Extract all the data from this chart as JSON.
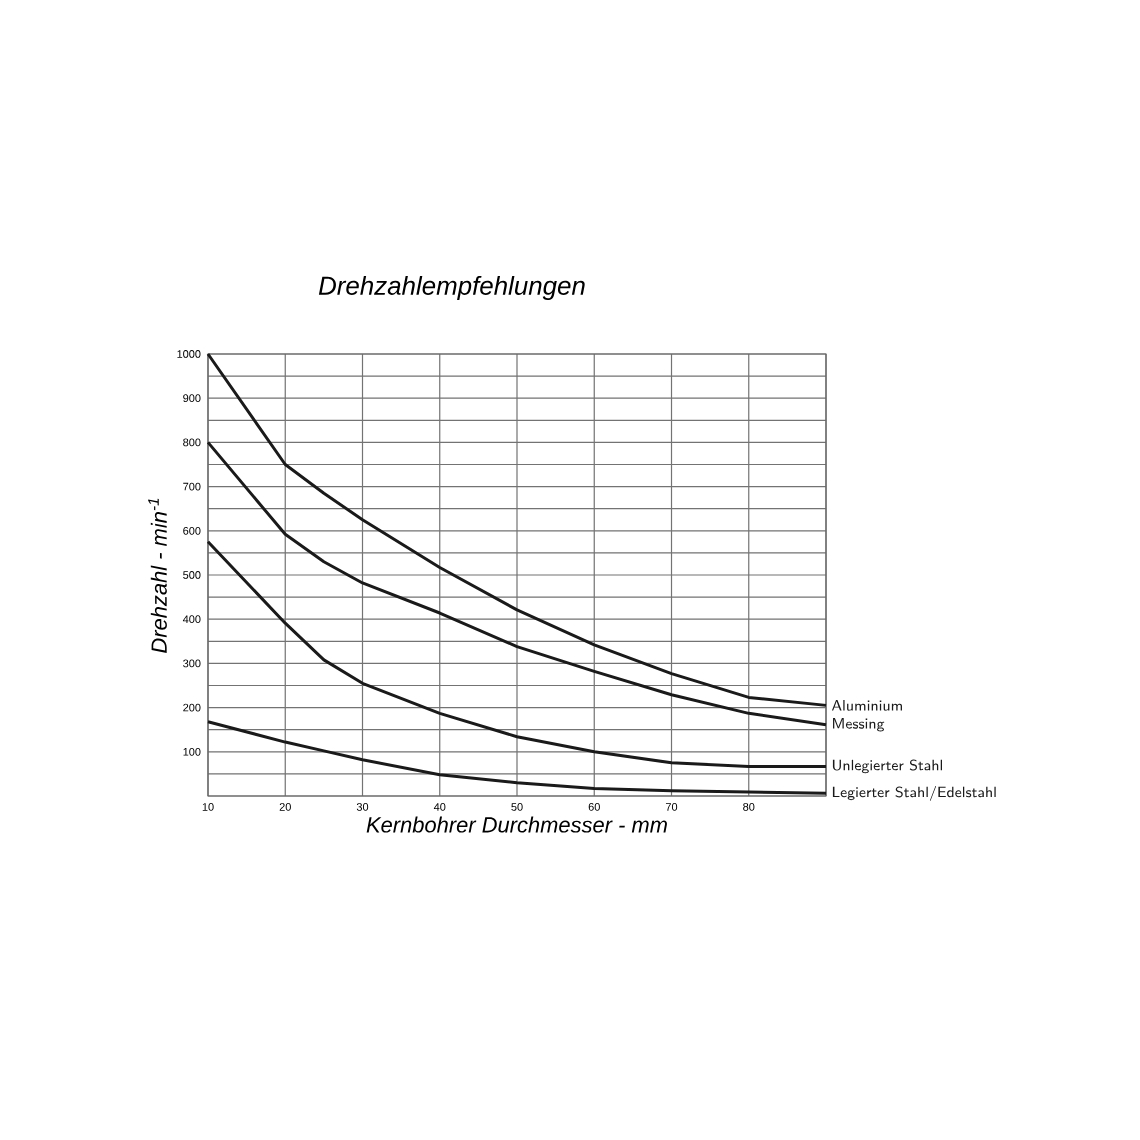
{
  "chart_data": {
    "type": "line",
    "title": "Drehzahlempfehlungen",
    "xlabel": "Kernbohrer Durchmesser - mm",
    "ylabel": "Drehzahl - min$^{-1}$",
    "x": [
      10,
      20,
      25,
      30,
      40,
      50,
      60,
      70,
      80,
      90
    ],
    "series": [
      {
        "name": "Aluminium",
        "color": "#1a1a1a",
        "values": [
          1000,
          750,
          685,
          625,
          517,
          421,
          342,
          277,
          223,
          205
        ]
      },
      {
        "name": "Messing",
        "color": "#1a1a1a",
        "values": [
          800,
          592,
          530,
          482,
          414,
          338,
          282,
          229,
          187,
          161
        ]
      },
      {
        "name": "Unlegierter Stahl",
        "color": "#1a1a1a",
        "values": [
          575,
          391,
          308,
          255,
          187,
          134,
          100,
          75,
          67,
          67
        ]
      },
      {
        "name": "Legierter Stahl/Edelstahl",
        "color": "#1a1a1a",
        "values": [
          168,
          122,
          102,
          82,
          48,
          30,
          17,
          12,
          9,
          6
        ]
      }
    ],
    "xlim": [
      10,
      90
    ],
    "ylim": [
      0,
      1000
    ],
    "xticks": [
      10,
      20,
      30,
      40,
      50,
      60,
      70,
      80,
      {
        "value": 90,
        "label": null
      }
    ],
    "yticks": [
      {
        "value": 0,
        "label": null
      },
      {
        "value": 50,
        "label": null
      },
      100,
      {
        "value": 150,
        "label": null
      },
      200,
      {
        "value": 250,
        "label": null
      },
      300,
      {
        "value": 350,
        "label": null
      },
      400,
      {
        "value": 450,
        "label": null
      },
      500,
      {
        "value": 550,
        "label": null
      },
      600,
      {
        "value": 650,
        "label": null
      },
      700,
      {
        "value": 750,
        "label": null
      },
      800,
      {
        "value": 850,
        "label": null
      },
      900,
      {
        "value": 950,
        "label": null
      },
      1000
    ],
    "grid": true,
    "legend": false,
    "marker": "none",
    "line_style": "solid"
  }
}
